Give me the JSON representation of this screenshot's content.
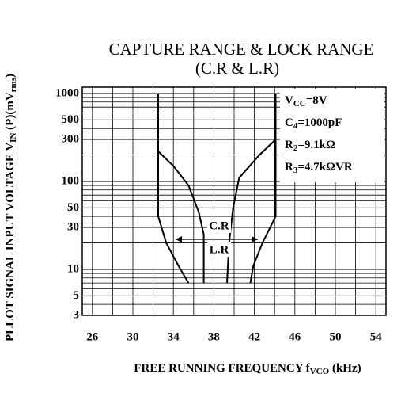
{
  "chart_data": {
    "type": "line",
    "title": [
      "CAPTURE RANGE & LOCK RANGE",
      "(C.R & L.R)"
    ],
    "x_label": [
      {
        "t": "FREE RUNNING FREQUENCY f"
      },
      {
        "t": "VCO",
        "sub": true
      },
      {
        "t": " (kHz)"
      }
    ],
    "y_label": [
      {
        "t": "PLLOT SIGNAL INPUT VOLTAGE V"
      },
      {
        "t": "IN",
        "sub": true
      },
      {
        "t": " (P)(mV"
      },
      {
        "t": "rms",
        "sub": true
      },
      {
        "t": ")"
      }
    ],
    "params": [
      [
        {
          "t": "V"
        },
        {
          "t": "CC",
          "sub": true
        },
        {
          "t": "=8V"
        }
      ],
      [
        {
          "t": "C"
        },
        {
          "t": "4",
          "sub": true
        },
        {
          "t": "=1000pF"
        }
      ],
      [
        {
          "t": "R"
        },
        {
          "t": "2",
          "sub": true
        },
        {
          "t": "=9.1kΩ"
        }
      ],
      [
        {
          "t": "R"
        },
        {
          "t": "3",
          "sub": true
        },
        {
          "t": "=4.7kΩVR"
        }
      ]
    ],
    "annotations": [
      "C.R",
      "L.R"
    ],
    "xlim": [
      25,
      55
    ],
    "xticks": [
      26,
      30,
      34,
      38,
      42,
      46,
      50,
      54
    ],
    "xminor": [
      28,
      32,
      36,
      40,
      44,
      48,
      52
    ],
    "ylim": [
      3,
      1000
    ],
    "log_y": true,
    "yticks": [
      3,
      5,
      10,
      30,
      50,
      100,
      300,
      500,
      1000
    ],
    "yminor": [
      4,
      6,
      7,
      8,
      9,
      20,
      40,
      60,
      70,
      80,
      90,
      200,
      400,
      600,
      700,
      800,
      900
    ],
    "grid": true,
    "series": [
      {
        "color": "#000000",
        "x": [
          32.5,
          32.5,
          33.3,
          34.5,
          35.5
        ],
        "values": [
          1000,
          40,
          20,
          11,
          7
        ]
      },
      {
        "color": "#000000",
        "x": [
          32.5,
          34,
          35.5,
          36.5,
          37,
          37,
          37
        ],
        "values": [
          220,
          150,
          90,
          45,
          25,
          10,
          7
        ]
      },
      {
        "color": "#000000",
        "x": [
          44.1,
          42.5,
          40.5,
          39.9,
          39.5,
          39.3
        ],
        "values": [
          300,
          200,
          110,
          50,
          20,
          7
        ]
      },
      {
        "color": "#000000",
        "x": [
          44.1,
          44.1,
          42.8,
          41.9,
          41.6
        ],
        "values": [
          1000,
          40,
          20,
          11,
          7
        ]
      }
    ]
  }
}
